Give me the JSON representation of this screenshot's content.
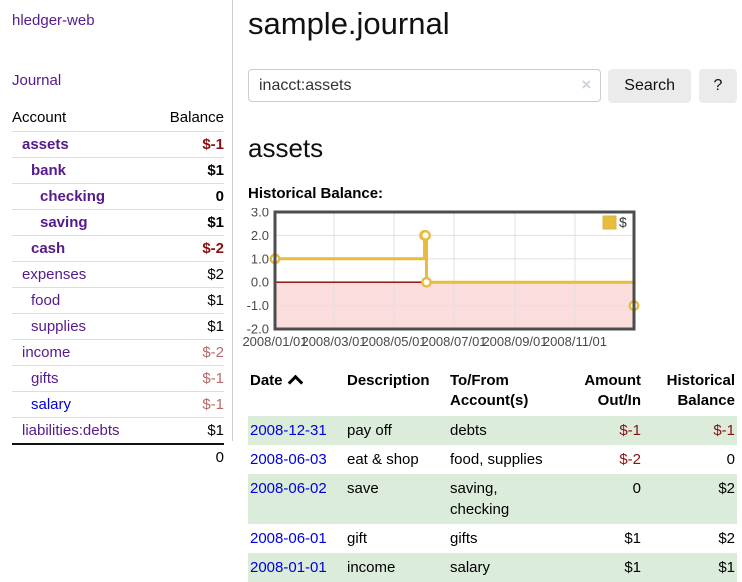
{
  "colors": {
    "brand_purple": "#551a8b",
    "link_blue": "#0000dd",
    "negative_strong": "#8b1111",
    "negative_soft": "#b36b6b",
    "row_stripe_green": "#dbecdb",
    "chart_line_gold": "#e8bc3e"
  },
  "app": {
    "brand": "hledger-web"
  },
  "sidebar": {
    "journal_link": "Journal",
    "accounts": {
      "headers": {
        "account": "Account",
        "balance": "Balance"
      },
      "rows": [
        {
          "name": "assets",
          "level": 0,
          "bold": true,
          "balance": "$-1",
          "balance_color": "strong-negative"
        },
        {
          "name": "bank",
          "level": 1,
          "bold": true,
          "balance": "$1",
          "balance_color": "normal"
        },
        {
          "name": "checking",
          "level": 2,
          "bold": true,
          "balance": "0",
          "balance_color": "normal"
        },
        {
          "name": "saving",
          "level": 2,
          "bold": true,
          "balance": "$1",
          "balance_color": "normal"
        },
        {
          "name": "cash",
          "level": 1,
          "bold": true,
          "balance": "$-2",
          "balance_color": "strong-negative"
        },
        {
          "name": "expenses",
          "level": 0,
          "bold": false,
          "balance": "$2",
          "balance_color": "normal"
        },
        {
          "name": "food",
          "level": 1,
          "bold": false,
          "balance": "$1",
          "balance_color": "normal"
        },
        {
          "name": "supplies",
          "level": 1,
          "bold": false,
          "balance": "$1",
          "balance_color": "normal"
        },
        {
          "name": "income",
          "level": 0,
          "bold": false,
          "balance": "$-2",
          "balance_color": "soft-negative"
        },
        {
          "name": "gifts",
          "level": 1,
          "bold": false,
          "balance": "$-1",
          "balance_color": "soft-negative"
        },
        {
          "name": "salary",
          "level": 1,
          "bold": false,
          "balance": "$-1",
          "balance_color": "soft-negative",
          "link_color": "blue"
        },
        {
          "name": "liabilities:debts",
          "level": 0,
          "bold": false,
          "balance": "$1",
          "balance_color": "normal"
        }
      ],
      "total": "0"
    }
  },
  "main": {
    "title": "sample.journal",
    "search": {
      "value": "inacct:assets",
      "clear_icon": "×",
      "search_button": "Search",
      "help_button": "?"
    },
    "account_heading": "assets",
    "chart_title": "Historical Balance:"
  },
  "chart_data": {
    "type": "line",
    "style": "step",
    "title": "Historical Balance",
    "series": [
      {
        "name": "$",
        "color": "#e8bc3e",
        "points": [
          [
            "2008-01-01",
            1
          ],
          [
            "2008-06-01",
            2
          ],
          [
            "2008-06-02",
            2
          ],
          [
            "2008-06-03",
            0
          ],
          [
            "2008-12-31",
            -1
          ]
        ]
      }
    ],
    "xlim": [
      "2008-01-01",
      "2008-12-31"
    ],
    "ylim": [
      -2,
      3
    ],
    "x_ticks": [
      "2008/01/01",
      "2008/03/01",
      "2008/05/01",
      "2008/07/01",
      "2008/09/01",
      "2008/11/01"
    ],
    "y_ticks": [
      3,
      2,
      1,
      0,
      -1,
      -2
    ],
    "grid": true,
    "legend_position": "top-right",
    "grid_color": "#e0e0e0",
    "border_color": "#4d4d4d",
    "negative_region_color": "#fbdddd",
    "zero_line_color": "#8b0000",
    "marker_fill": "#ffffff"
  },
  "register": {
    "columns": {
      "date": "Date",
      "sort_icon": "sort-ascending-chevron",
      "description": "Description",
      "accounts": "To/From Account(s)",
      "amount": "Amount Out/In",
      "balance": "Historical Balance"
    },
    "rows": [
      {
        "date": "2008-12-31",
        "description": "pay off",
        "accounts": "debts",
        "amount": "$-1",
        "amount_negative": true,
        "balance": "$-1",
        "balance_negative": true,
        "striped": true
      },
      {
        "date": "2008-06-03",
        "description": "eat & shop",
        "accounts": "food, supplies",
        "amount": "$-2",
        "amount_negative": true,
        "balance": "0",
        "balance_negative": false,
        "striped": false
      },
      {
        "date": "2008-06-02",
        "description": "save",
        "accounts": "saving, checking",
        "amount": "0",
        "amount_negative": false,
        "balance": "$2",
        "balance_negative": false,
        "striped": true
      },
      {
        "date": "2008-06-01",
        "description": "gift",
        "accounts": "gifts",
        "amount": "$1",
        "amount_negative": false,
        "balance": "$2",
        "balance_negative": false,
        "striped": false
      },
      {
        "date": "2008-01-01",
        "description": "income",
        "accounts": "salary",
        "amount": "$1",
        "amount_negative": false,
        "balance": "$1",
        "balance_negative": false,
        "striped": true
      }
    ]
  }
}
